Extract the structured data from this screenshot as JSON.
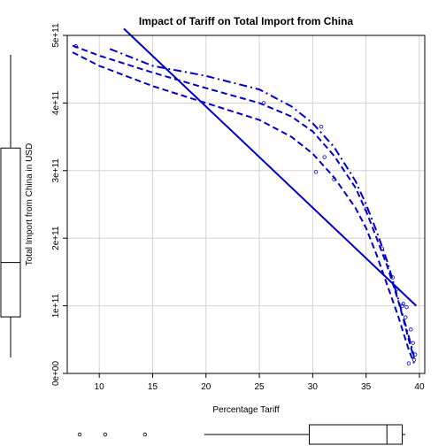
{
  "chart_data": {
    "type": "scatter",
    "title": "Impact of Tariff on Total Import from China",
    "xlabel": "Percentage Tariff",
    "ylabel": "Total Import from China in USD",
    "xlim": [
      7,
      40.5
    ],
    "ylim": [
      0,
      500000000000
    ],
    "xticks": [
      10,
      15,
      20,
      25,
      30,
      35,
      40
    ],
    "xtick_labels": [
      "10",
      "15",
      "20",
      "25",
      "30",
      "35",
      "40"
    ],
    "yticks": [
      0,
      100000000000,
      200000000000,
      300000000000,
      400000000000,
      500000000000
    ],
    "ytick_labels": [
      "0e+00",
      "1e+11",
      "2e+11",
      "3e+11",
      "4e+11",
      "5e+11"
    ],
    "grid": true,
    "colors": {
      "series": "#0000cc",
      "axis": "#000000",
      "grid": "#d3d3d3"
    },
    "points": [
      {
        "x": 7.8,
        "y": 484000000000
      },
      {
        "x": 25.4,
        "y": 400000000000
      },
      {
        "x": 30.8,
        "y": 365000000000
      },
      {
        "x": 31.1,
        "y": 320000000000
      },
      {
        "x": 30.3,
        "y": 298000000000
      },
      {
        "x": 32.0,
        "y": 287000000000
      },
      {
        "x": 35.0,
        "y": 243000000000
      },
      {
        "x": 36.5,
        "y": 185000000000
      },
      {
        "x": 37.5,
        "y": 142000000000
      },
      {
        "x": 37.9,
        "y": 125000000000
      },
      {
        "x": 38.4,
        "y": 100000000000
      },
      {
        "x": 38.7,
        "y": 83000000000
      },
      {
        "x": 39.2,
        "y": 65000000000
      },
      {
        "x": 39.4,
        "y": 45000000000
      },
      {
        "x": 39.6,
        "y": 28000000000
      },
      {
        "x": 39.5,
        "y": 20000000000
      },
      {
        "x": 39.0,
        "y": 15000000000
      },
      {
        "x": 38.5,
        "y": 103000000000
      },
      {
        "x": 38.8,
        "y": 98000000000
      }
    ],
    "lines": [
      {
        "style": "solid",
        "x": [
          12.3,
          39.7
        ],
        "y": [
          510000000000,
          100000000000
        ]
      },
      {
        "style": "dashed",
        "x": [
          7.5,
          10,
          15,
          20,
          25,
          28,
          30,
          32,
          34,
          35,
          36,
          37,
          38,
          38.5,
          39,
          39.5
        ],
        "y": [
          485000000000,
          470000000000,
          445000000000,
          422000000000,
          400000000000,
          380000000000,
          358000000000,
          322000000000,
          275000000000,
          240000000000,
          200000000000,
          158000000000,
          108000000000,
          80000000000,
          50000000000,
          22000000000
        ]
      },
      {
        "style": "dashdot",
        "x": [
          11,
          15,
          20,
          25,
          28,
          30,
          32,
          34,
          35,
          36,
          37,
          38,
          39,
          39.5
        ],
        "y": [
          480000000000,
          455000000000,
          440000000000,
          420000000000,
          395000000000,
          370000000000,
          335000000000,
          285000000000,
          250000000000,
          210000000000,
          165000000000,
          110000000000,
          55000000000,
          25000000000
        ]
      },
      {
        "style": "dashed",
        "x": [
          7.5,
          10,
          15,
          20,
          25,
          28,
          30,
          32,
          34,
          35,
          36,
          37,
          38,
          38.5,
          39,
          39.5
        ],
        "y": [
          475000000000,
          455000000000,
          425000000000,
          400000000000,
          375000000000,
          350000000000,
          325000000000,
          290000000000,
          245000000000,
          215000000000,
          175000000000,
          130000000000,
          85000000000,
          60000000000,
          35000000000,
          15000000000
        ]
      }
    ],
    "ybox": {
      "min": 0,
      "q1": 65000000000,
      "median": 152000000000,
      "q3": 335000000000,
      "max": 484000000000
    },
    "xbox": {
      "min": 20,
      "q1": 30.3,
      "median": 37.9,
      "q3": 39.4,
      "max": 39.7
    },
    "xbox_outliers": [
      7.8,
      10.3,
      14.2
    ]
  }
}
